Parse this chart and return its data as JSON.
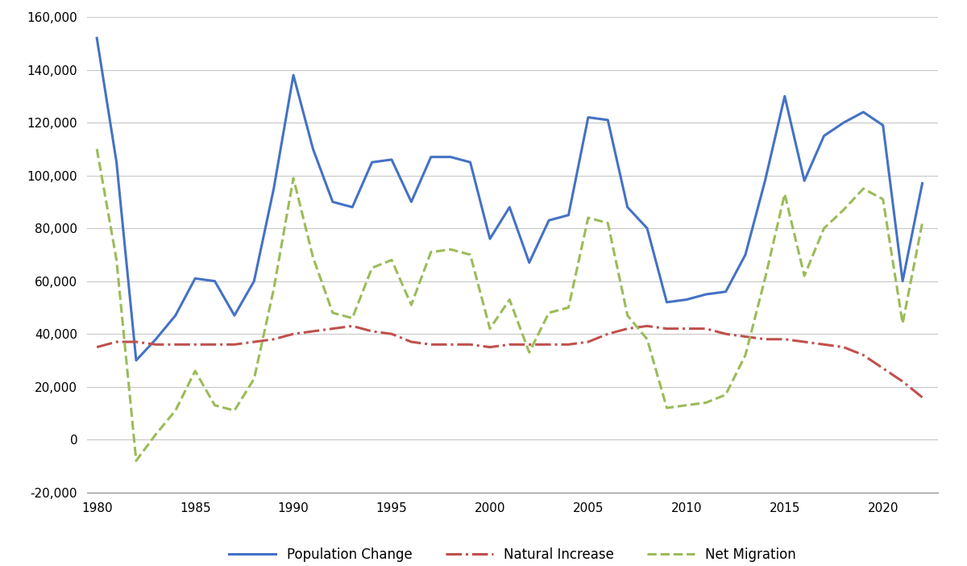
{
  "years": [
    1980,
    1981,
    1982,
    1983,
    1984,
    1985,
    1986,
    1987,
    1988,
    1989,
    1990,
    1991,
    1992,
    1993,
    1994,
    1995,
    1996,
    1997,
    1998,
    1999,
    2000,
    2001,
    2002,
    2003,
    2004,
    2005,
    2006,
    2007,
    2008,
    2009,
    2010,
    2011,
    2012,
    2013,
    2014,
    2015,
    2016,
    2017,
    2018,
    2019,
    2020,
    2021,
    2022
  ],
  "population_change": [
    152000,
    105000,
    30000,
    38000,
    47000,
    61000,
    60000,
    47000,
    60000,
    95000,
    138000,
    110000,
    90000,
    88000,
    105000,
    106000,
    90000,
    107000,
    107000,
    105000,
    76000,
    88000,
    67000,
    83000,
    85000,
    122000,
    121000,
    88000,
    80000,
    52000,
    53000,
    55000,
    56000,
    70000,
    98000,
    130000,
    98000,
    115000,
    120000,
    124000,
    119000,
    60000,
    97000
  ],
  "natural_increase": [
    35000,
    37000,
    37000,
    36000,
    36000,
    36000,
    36000,
    36000,
    37000,
    38000,
    40000,
    41000,
    42000,
    43000,
    41000,
    40000,
    37000,
    36000,
    36000,
    36000,
    35000,
    36000,
    36000,
    36000,
    36000,
    37000,
    40000,
    42000,
    43000,
    42000,
    42000,
    42000,
    40000,
    39000,
    38000,
    38000,
    37000,
    36000,
    35000,
    32000,
    27000,
    22000,
    16000
  ],
  "net_migration": [
    110000,
    68000,
    -8000,
    2000,
    11000,
    26000,
    13000,
    11000,
    23000,
    57000,
    99000,
    69000,
    48000,
    46000,
    65000,
    68000,
    51000,
    71000,
    72000,
    70000,
    42000,
    53000,
    33000,
    48000,
    50000,
    84000,
    82000,
    47000,
    38000,
    12000,
    13000,
    14000,
    17000,
    32000,
    61000,
    93000,
    62000,
    80000,
    87000,
    95000,
    91000,
    44000,
    82000
  ],
  "pop_color": "#4472C4",
  "nat_color": "#C0504D",
  "mig_color": "#9BBB59",
  "background_color": "#FFFFFF",
  "grid_color": "#C8C8C8",
  "ylim": [
    -20000,
    160000
  ],
  "yticks": [
    -20000,
    0,
    20000,
    40000,
    60000,
    80000,
    100000,
    120000,
    140000,
    160000
  ],
  "xticks": [
    1980,
    1985,
    1990,
    1995,
    2000,
    2005,
    2010,
    2015,
    2020
  ],
  "legend_labels": [
    "Population Change",
    "Natural Increase",
    "Net Migration"
  ],
  "figsize": [
    12.0,
    7.02
  ],
  "dpi": 100
}
